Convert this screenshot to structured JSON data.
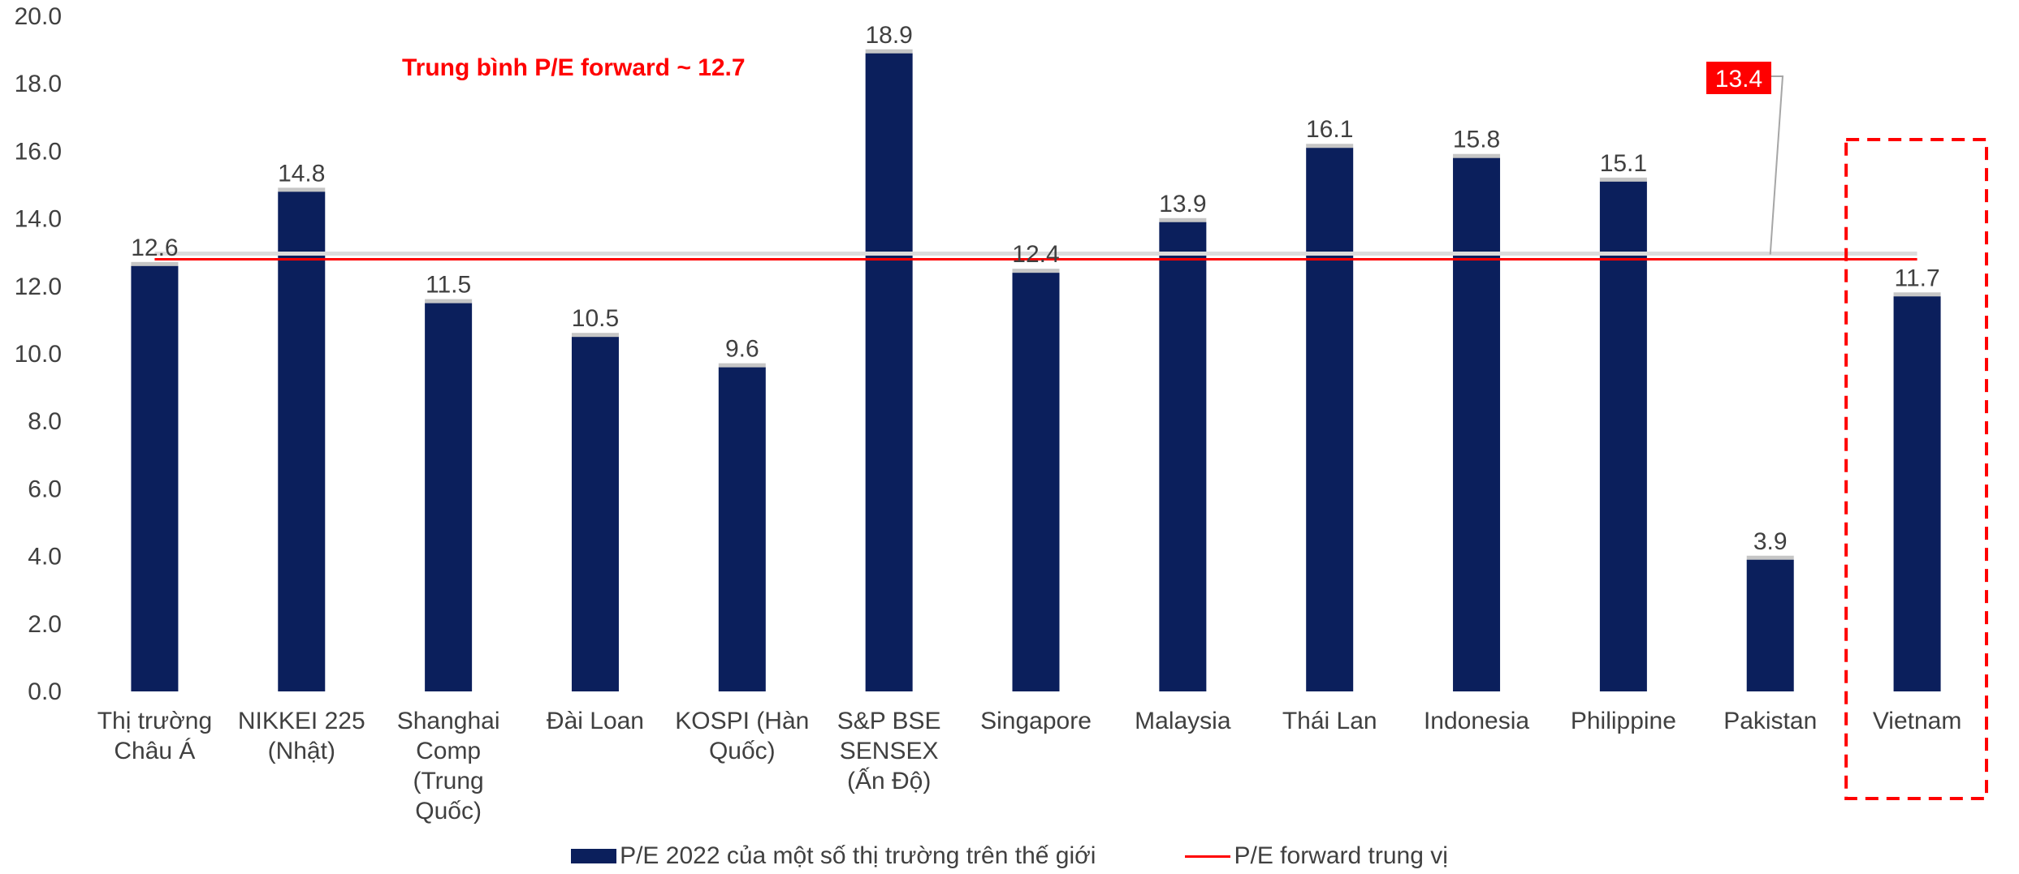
{
  "chart_data": {
    "type": "bar",
    "categories": [
      [
        "Thị trường",
        "Châu Á"
      ],
      [
        "NIKKEI 225",
        "(Nhật)"
      ],
      [
        "Shanghai",
        "Comp",
        "(Trung",
        "Quốc)"
      ],
      [
        "Đài Loan"
      ],
      [
        "KOSPI (Hàn",
        "Quốc)"
      ],
      [
        "S&P BSE",
        "SENSEX",
        "(Ấn Độ)"
      ],
      [
        "Singapore"
      ],
      [
        "Malaysia"
      ],
      [
        "Thái Lan"
      ],
      [
        "Indonesia"
      ],
      [
        "Philippine"
      ],
      [
        "Pakistan"
      ],
      [
        "Vietnam"
      ]
    ],
    "series": [
      {
        "name": "P/E 2022 của một số thị trường trên thế giới",
        "values": [
          12.6,
          14.8,
          11.5,
          10.5,
          9.6,
          18.9,
          12.4,
          13.9,
          16.1,
          15.8,
          15.1,
          3.9,
          11.7
        ],
        "labels": [
          "12.6",
          "14.8",
          "11.5",
          "10.5",
          "9.6",
          "18.9",
          "12.4",
          "13.9",
          "16.1",
          "15.8",
          "15.1",
          "3.9",
          "11.7"
        ],
        "color": "#0b1f5c"
      },
      {
        "name": "P/E forward trung vị",
        "type": "line",
        "value": 12.8,
        "color": "#ff0000"
      }
    ],
    "ylim": [
      0,
      20
    ],
    "yticks": [
      "0.0",
      "2.0",
      "4.0",
      "6.0",
      "8.0",
      "10.0",
      "12.0",
      "14.0",
      "16.0",
      "18.0",
      "20.0"
    ],
    "annotation_text": "Trung bình P/E forward ~ 12.7",
    "callout_label": "13.4",
    "highlight_category": "Vietnam",
    "grid": false,
    "legend_position": "bottom"
  }
}
